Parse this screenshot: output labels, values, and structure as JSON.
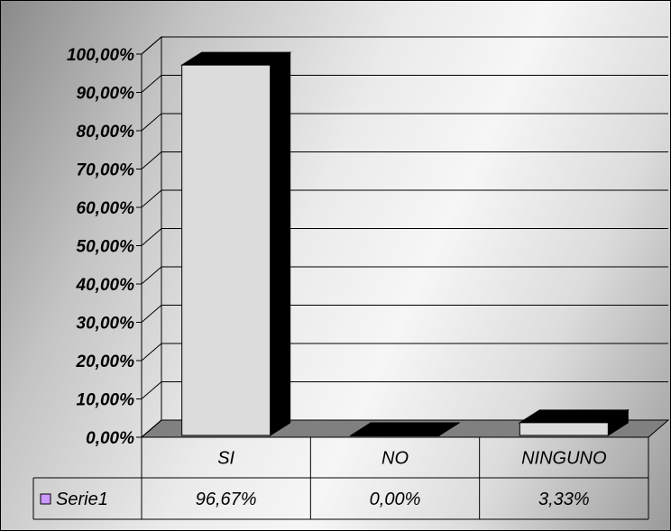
{
  "chart_data": {
    "type": "bar",
    "categories": [
      "SI",
      "NO",
      "NINGUNO"
    ],
    "series": [
      {
        "name": "Serie1",
        "values": [
          96.67,
          0.0,
          3.33
        ],
        "color": "#dcdcdc"
      }
    ],
    "value_labels": [
      "96,67%",
      "0,00%",
      "3,33%"
    ],
    "y_ticks": [
      "0,00%",
      "10,00%",
      "20,00%",
      "30,00%",
      "40,00%",
      "50,00%",
      "60,00%",
      "70,00%",
      "80,00%",
      "90,00%",
      "100,00%"
    ],
    "ylim": [
      0,
      100
    ],
    "y_tick_step": 10,
    "grid": true,
    "legend_marker_color": "#cc99ff",
    "bar_side_color": "#000000",
    "data_table": true
  }
}
